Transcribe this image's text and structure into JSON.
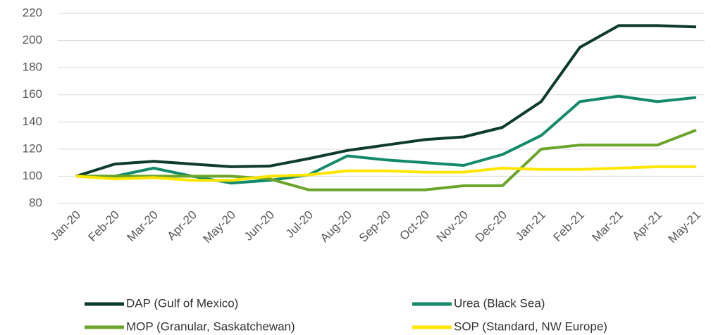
{
  "chart_data": {
    "type": "line",
    "categories": [
      "Jan-20",
      "Feb-20",
      "Mar-20",
      "Apr-20",
      "May-20",
      "Jun-20",
      "Jul-20",
      "Aug-20",
      "Sep-20",
      "Oct-20",
      "Nov-20",
      "Dec-20",
      "Jan-21",
      "Feb-21",
      "Mar-21",
      "Apr-21",
      "May-21"
    ],
    "series": [
      {
        "name": "DAP (Gulf of Mexico)",
        "color": "#0d3b2e",
        "values": [
          100,
          109,
          111,
          109,
          107,
          107.5,
          113,
          119,
          123,
          127,
          129,
          136,
          155,
          195,
          211,
          211,
          210
        ]
      },
      {
        "name": "Urea (Black Sea)",
        "color": "#138a6a",
        "values": [
          100,
          100,
          106,
          100,
          95,
          97,
          101,
          115,
          112,
          110,
          108,
          116,
          130,
          155,
          159,
          155,
          158
        ]
      },
      {
        "name": "MOP (Granular, Saskatchewan)",
        "color": "#6aa52a",
        "values": [
          100,
          100,
          100,
          100,
          100,
          98,
          90,
          90,
          90,
          90,
          93,
          93,
          120,
          123,
          123,
          123,
          134
        ]
      },
      {
        "name": "SOP (Standard, NW Europe)",
        "color": "#ffe600",
        "values": [
          100,
          98,
          99,
          97,
          97,
          100,
          101,
          104,
          104,
          103,
          103,
          106,
          105,
          105,
          106,
          107,
          107
        ]
      }
    ],
    "ylim": [
      80,
      220
    ],
    "yticks": [
      80,
      100,
      120,
      140,
      160,
      180,
      200,
      220
    ],
    "grid": true
  }
}
